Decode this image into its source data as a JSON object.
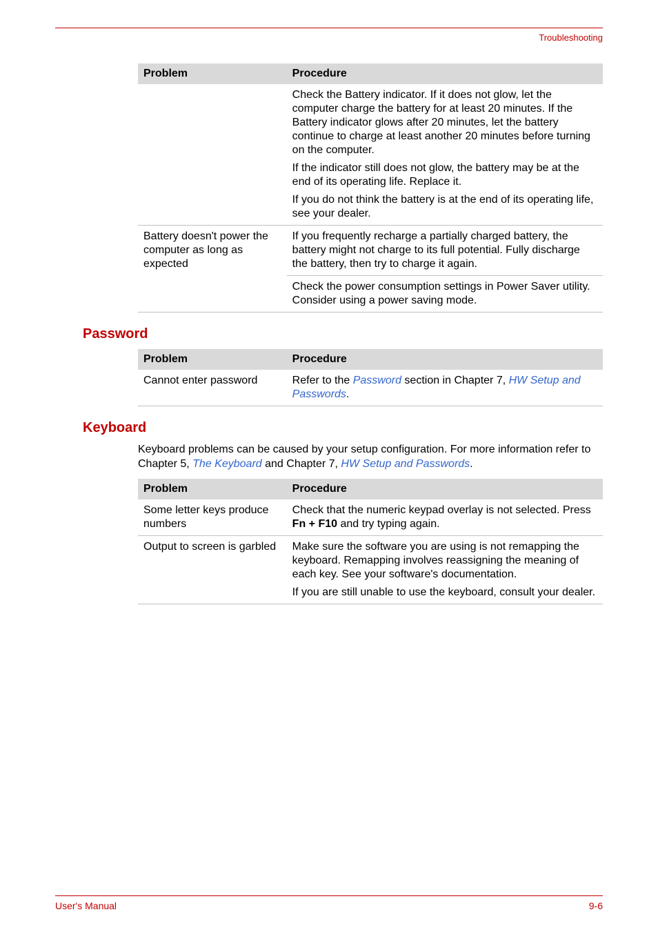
{
  "running_head": "Troubleshooting",
  "table1": {
    "head_problem": "Problem",
    "head_procedure": "Procedure",
    "row1_proc_p1": "Check the Battery indicator. If it does not glow, let the computer charge the battery for at least 20 minutes. If the Battery indicator glows after 20 minutes, let the battery continue to charge at least another 20 minutes before turning on the computer.",
    "row1_proc_p2": "If the indicator still does not glow, the battery may be at the end of its operating life. Replace it.",
    "row1_proc_p3": "If you do not think the battery is at the end of its operating life, see your dealer.",
    "row2_problem": "Battery doesn't power the computer as long as expected",
    "row2_proc": "If you frequently recharge a partially charged battery, the battery might not charge to its full potential. Fully discharge the battery, then try to charge it again.",
    "row3_proc": "Check the power consumption settings in Power Saver utility. Consider using a power saving mode."
  },
  "section_password": "Password",
  "table2": {
    "head_problem": "Problem",
    "head_procedure": "Procedure",
    "row1_problem": "Cannot enter password",
    "row1_proc_pre": "Refer to the ",
    "row1_proc_link1": "Password",
    "row1_proc_mid": " section in Chapter 7, ",
    "row1_proc_link2": "HW Setup and Passwords",
    "row1_proc_end": "."
  },
  "section_keyboard": "Keyboard",
  "keyboard_intro_pre": "Keyboard problems can be caused by your setup configuration. For more information refer to Chapter 5, ",
  "keyboard_intro_link1": "The Keyboard",
  "keyboard_intro_mid": " and Chapter 7, ",
  "keyboard_intro_link2": "HW Setup and Passwords",
  "keyboard_intro_end": ".",
  "table3": {
    "head_problem": "Problem",
    "head_procedure": "Procedure",
    "row1_problem": "Some letter keys produce numbers",
    "row1_proc_pre": "Check that the numeric keypad overlay is not selected. Press ",
    "row1_proc_bold": "Fn + F10",
    "row1_proc_post": " and try typing again.",
    "row2_problem": "Output to screen is garbled",
    "row2_proc_p1": "Make sure the software you are using is not remapping the keyboard. Remapping involves reassigning the meaning of each key. See your software's documentation.",
    "row2_proc_p2": "If you are still unable to use the keyboard, consult your dealer."
  },
  "footer_left": "User's Manual",
  "footer_right": "9-6"
}
